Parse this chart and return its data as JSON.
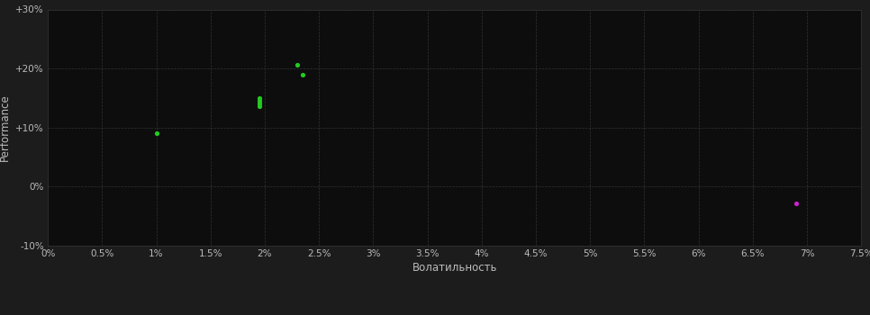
{
  "background_color": "#1c1c1c",
  "plot_bg_color": "#0d0d0d",
  "grid_color": "#333333",
  "text_color": "#bbbbbb",
  "xlabel": "Волатильность",
  "ylabel": "Performance",
  "xlim": [
    0.0,
    0.075
  ],
  "ylim": [
    -0.1,
    0.3
  ],
  "xticks": [
    0.0,
    0.005,
    0.01,
    0.015,
    0.02,
    0.025,
    0.03,
    0.035,
    0.04,
    0.045,
    0.05,
    0.055,
    0.06,
    0.065,
    0.07,
    0.075
  ],
  "yticks": [
    -0.1,
    0.0,
    0.1,
    0.2,
    0.3
  ],
  "green_points": [
    [
      0.01,
      0.09
    ],
    [
      0.0195,
      0.15
    ],
    [
      0.0195,
      0.145
    ],
    [
      0.0195,
      0.14
    ],
    [
      0.0195,
      0.136
    ],
    [
      0.023,
      0.207
    ],
    [
      0.0235,
      0.19
    ]
  ],
  "magenta_points": [
    [
      0.069,
      -0.028
    ]
  ],
  "green_color": "#22cc22",
  "magenta_color": "#cc22cc",
  "dot_size": 14
}
